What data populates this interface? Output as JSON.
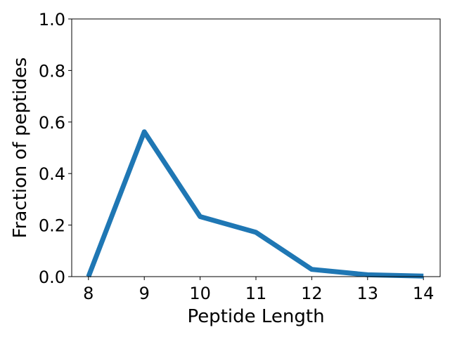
{
  "chart_data": {
    "type": "line",
    "x": [
      8,
      9,
      10,
      11,
      12,
      13,
      14
    ],
    "series": [
      {
        "values": [
          0.0,
          0.562,
          0.233,
          0.172,
          0.028,
          0.007,
          0.002
        ],
        "color": "#1f77b4"
      }
    ],
    "xlabel": "Peptide Length",
    "ylabel": "Fraction of peptides",
    "xlim": [
      7.7,
      14.3
    ],
    "ylim": [
      0.0,
      1.0
    ],
    "xticks": [
      8,
      9,
      10,
      11,
      12,
      13,
      14
    ],
    "xtick_labels": [
      "8",
      "9",
      "10",
      "11",
      "12",
      "13",
      "14"
    ],
    "yticks": [
      0.0,
      0.2,
      0.4,
      0.6,
      0.8,
      1.0
    ],
    "ytick_labels": [
      "0.0",
      "0.2",
      "0.4",
      "0.6",
      "0.8",
      "1.0"
    ],
    "grid": false,
    "legend": false
  }
}
